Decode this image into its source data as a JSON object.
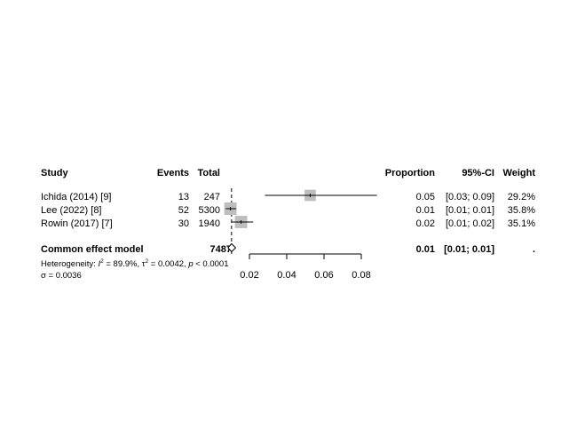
{
  "chart_data": {
    "type": "forest",
    "headers": {
      "study": "Study",
      "events": "Events",
      "total": "Total",
      "proportion": "Proportion",
      "ci": "95%-CI",
      "weight": "Weight"
    },
    "studies": [
      {
        "name": "Ichida (2014) [9]",
        "events": "13",
        "total": "247",
        "estimate": 0.0526,
        "lower": 0.0283,
        "upper": 0.0884,
        "proportion": "0.05",
        "ci": "[0.03; 0.09]",
        "weight": "29.2%",
        "weight_value": 29.2
      },
      {
        "name": "Lee (2022) [8]",
        "events": "52",
        "total": "5300",
        "estimate": 0.0098,
        "lower": 0.0073,
        "upper": 0.0128,
        "proportion": "0.01",
        "ci": "[0.01; 0.01]",
        "weight": "35.8%",
        "weight_value": 35.8
      },
      {
        "name": "Rowin (2017) [7]",
        "events": "30",
        "total": "1940",
        "estimate": 0.0155,
        "lower": 0.0105,
        "upper": 0.022,
        "proportion": "0.02",
        "ci": "[0.01; 0.02]",
        "weight": "35.1%",
        "weight_value": 35.1
      }
    ],
    "summary": {
      "name": "Common effect model",
      "total": "7487",
      "estimate": 0.0104,
      "lower": 0.0085,
      "upper": 0.0126,
      "proportion": "0.01",
      "ci": "[0.01; 0.01]",
      "weight": "."
    },
    "heterogeneity": {
      "prefix": "Heterogeneity: ",
      "i2_symbol": "I",
      "i2_value": " = 89.9%, ",
      "tau2_symbol": "τ",
      "tau2_value": " = 0.0042, ",
      "p_symbol": "p",
      "p_value": " < 0.0001"
    },
    "sigma": "σ = 0.0036",
    "xlim": [
      0.02,
      0.08
    ],
    "xticks": [
      "0.02",
      "0.04",
      "0.06",
      "0.08"
    ],
    "xtick_values": [
      0.02,
      0.04,
      0.06,
      0.08
    ],
    "reference_line": 0.0104
  }
}
